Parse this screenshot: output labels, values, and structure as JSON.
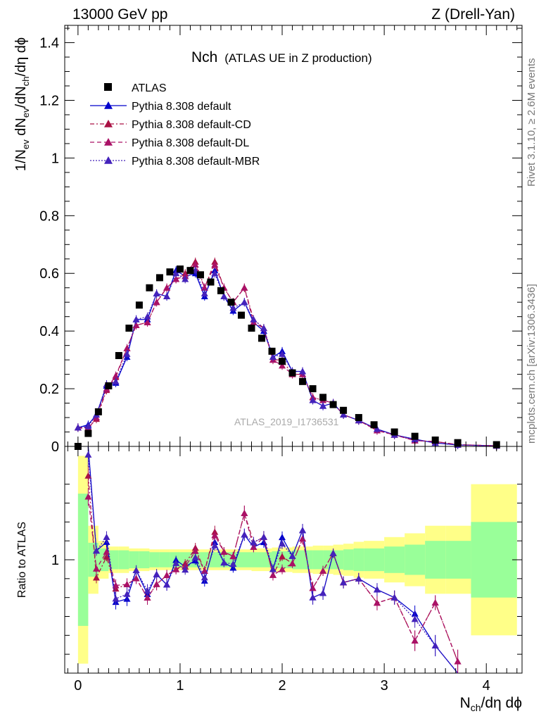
{
  "header": {
    "left": "13000 GeV pp",
    "right": "Z (Drell-Yan)"
  },
  "plot": {
    "title_main": "Nch",
    "title_sub": "(ATLAS UE in Z production)",
    "watermark": "ATLAS_2019_I1736531",
    "side_top": "Rivet 3.1.10, ≥ 2.6M events",
    "side_bottom": "mcplots.cern.ch [arXiv:1306.3436]",
    "ratio_ylabel": "Ratio to ATLAS"
  },
  "colors": {
    "data": "#000000",
    "default": "#0000cc",
    "cd": "#aa1144",
    "dl": "#aa1166",
    "mbr": "#4422bb",
    "band_inner": "#99ff99",
    "band_outer": "#ffff88"
  },
  "chart_data": {
    "type": "scatter",
    "xlabel": "N_ch/dη dϕ",
    "ylabel": "1/N_ev dN_ev/dN_ch/dη dϕ",
    "xlim": [
      -0.13,
      4.35
    ],
    "ylim": [
      0,
      1.46
    ],
    "x_ticks": [
      0,
      1,
      2,
      3,
      4
    ],
    "y_ticks": [
      0,
      0.2,
      0.4,
      0.6,
      0.8,
      1,
      1.2,
      1.4
    ],
    "ratio_ylim": [
      0.4,
      1.6
    ],
    "ratio_y_ticks": [
      1
    ],
    "legend_placement": "top-left",
    "series": [
      {
        "name": "ATLAS",
        "style": "square",
        "x": [
          0.0,
          0.1,
          0.2,
          0.3,
          0.4,
          0.5,
          0.6,
          0.7,
          0.8,
          0.9,
          1.0,
          1.1,
          1.2,
          1.3,
          1.4,
          1.5,
          1.6,
          1.7,
          1.8,
          1.9,
          2.0,
          2.1,
          2.2,
          2.3,
          2.4,
          2.5,
          2.6,
          2.75,
          2.9,
          3.1,
          3.3,
          3.5,
          3.72,
          4.1
        ],
        "values": [
          0.0,
          0.045,
          0.12,
          0.21,
          0.315,
          0.41,
          0.49,
          0.55,
          0.585,
          0.605,
          0.615,
          0.61,
          0.595,
          0.57,
          0.54,
          0.5,
          0.455,
          0.41,
          0.375,
          0.33,
          0.295,
          0.255,
          0.225,
          0.2,
          0.17,
          0.145,
          0.125,
          0.1,
          0.075,
          0.05,
          0.035,
          0.022,
          0.013,
          0.006
        ]
      },
      {
        "name": "Pythia 8.308 default",
        "style": "solid",
        "x": [
          0.0,
          0.1,
          0.18,
          0.28,
          0.37,
          0.48,
          0.57,
          0.68,
          0.77,
          0.87,
          0.96,
          1.05,
          1.15,
          1.24,
          1.34,
          1.43,
          1.52,
          1.63,
          1.72,
          1.82,
          1.91,
          2.0,
          2.1,
          2.2,
          2.3,
          2.4,
          2.5,
          2.6,
          2.75,
          2.93,
          3.1,
          3.3,
          3.5,
          3.72,
          4.1
        ],
        "values": [
          0.065,
          0.075,
          0.11,
          0.21,
          0.22,
          0.31,
          0.44,
          0.44,
          0.53,
          0.52,
          0.61,
          0.59,
          0.6,
          0.52,
          0.61,
          0.52,
          0.47,
          0.5,
          0.43,
          0.4,
          0.31,
          0.33,
          0.26,
          0.26,
          0.16,
          0.14,
          0.15,
          0.11,
          0.09,
          0.06,
          0.04,
          0.025,
          0.012,
          0.005,
          0.002
        ]
      },
      {
        "name": "Pythia 8.308 default-CD",
        "style": "dashdot",
        "x": [
          0.0,
          0.1,
          0.18,
          0.28,
          0.37,
          0.48,
          0.57,
          0.68,
          0.77,
          0.87,
          0.96,
          1.05,
          1.15,
          1.24,
          1.34,
          1.43,
          1.52,
          1.63,
          1.72,
          1.82,
          1.91,
          2.0,
          2.1,
          2.2,
          2.3,
          2.4,
          2.5,
          2.6,
          2.75,
          2.93,
          3.1,
          3.3,
          3.5,
          3.72,
          4.1
        ],
        "values": [
          0.065,
          0.065,
          0.095,
          0.195,
          0.24,
          0.34,
          0.42,
          0.43,
          0.5,
          0.55,
          0.58,
          0.6,
          0.64,
          0.55,
          0.64,
          0.55,
          0.5,
          0.55,
          0.44,
          0.41,
          0.3,
          0.3,
          0.25,
          0.25,
          0.17,
          0.16,
          0.15,
          0.11,
          0.09,
          0.055,
          0.04,
          0.02,
          0.017,
          0.006,
          0.002
        ]
      },
      {
        "name": "Pythia 8.308 default-DL",
        "style": "dashed",
        "x": [
          0.0,
          0.1,
          0.18,
          0.28,
          0.37,
          0.48,
          0.57,
          0.68,
          0.77,
          0.87,
          0.96,
          1.05,
          1.15,
          1.24,
          1.34,
          1.43,
          1.52,
          1.63,
          1.72,
          1.82,
          1.91,
          2.0,
          2.1,
          2.2,
          2.3,
          2.4,
          2.5,
          2.6,
          2.75,
          2.93,
          3.1,
          3.3,
          3.5,
          3.72,
          4.1
        ],
        "values": [
          0.065,
          0.06,
          0.1,
          0.2,
          0.245,
          0.34,
          0.42,
          0.43,
          0.5,
          0.55,
          0.58,
          0.59,
          0.63,
          0.55,
          0.63,
          0.55,
          0.5,
          0.55,
          0.43,
          0.41,
          0.3,
          0.28,
          0.25,
          0.25,
          0.17,
          0.16,
          0.15,
          0.11,
          0.09,
          0.055,
          0.04,
          0.02,
          0.017,
          0.006,
          0.002
        ]
      },
      {
        "name": "Pythia 8.308 default-MBR",
        "style": "dotted",
        "x": [
          0.0,
          0.1,
          0.18,
          0.28,
          0.37,
          0.48,
          0.57,
          0.68,
          0.77,
          0.87,
          0.96,
          1.05,
          1.15,
          1.24,
          1.34,
          1.43,
          1.52,
          1.63,
          1.72,
          1.82,
          1.91,
          2.0,
          2.1,
          2.2,
          2.3,
          2.4,
          2.5,
          2.6,
          2.75,
          2.93,
          3.1,
          3.3,
          3.5,
          3.72,
          4.1
        ],
        "values": [
          0.065,
          0.07,
          0.11,
          0.215,
          0.225,
          0.32,
          0.44,
          0.45,
          0.53,
          0.52,
          0.6,
          0.58,
          0.61,
          0.53,
          0.6,
          0.52,
          0.48,
          0.5,
          0.44,
          0.41,
          0.31,
          0.32,
          0.26,
          0.26,
          0.16,
          0.14,
          0.15,
          0.11,
          0.09,
          0.06,
          0.04,
          0.024,
          0.012,
          0.005,
          0.002
        ]
      }
    ],
    "ratio": {
      "bins": [
        0.0,
        0.1,
        0.2,
        0.3,
        0.4,
        0.5,
        0.6,
        0.7,
        0.8,
        0.9,
        1.0,
        1.1,
        1.2,
        1.3,
        1.4,
        1.5,
        1.6,
        1.7,
        1.8,
        1.9,
        2.0,
        2.1,
        2.2,
        2.3,
        2.4,
        2.5,
        2.6,
        2.7,
        2.8,
        3.0,
        3.2,
        3.4,
        3.6,
        3.85,
        4.3
      ],
      "band_inner_halfwidth": [
        0.35,
        0.09,
        0.06,
        0.05,
        0.05,
        0.045,
        0.045,
        0.04,
        0.04,
        0.04,
        0.04,
        0.04,
        0.04,
        0.04,
        0.04,
        0.04,
        0.04,
        0.04,
        0.04,
        0.045,
        0.045,
        0.05,
        0.05,
        0.05,
        0.05,
        0.05,
        0.055,
        0.06,
        0.06,
        0.07,
        0.08,
        0.1,
        0.1,
        0.2
      ],
      "band_outer_halfwidth": [
        0.55,
        0.18,
        0.1,
        0.07,
        0.07,
        0.06,
        0.06,
        0.055,
        0.055,
        0.055,
        0.055,
        0.055,
        0.055,
        0.055,
        0.055,
        0.055,
        0.055,
        0.06,
        0.06,
        0.065,
        0.065,
        0.07,
        0.07,
        0.075,
        0.075,
        0.08,
        0.085,
        0.095,
        0.1,
        0.12,
        0.14,
        0.18,
        0.18,
        0.4
      ]
    }
  }
}
